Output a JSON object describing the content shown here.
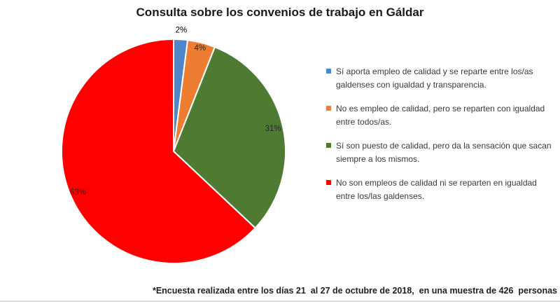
{
  "title": "Consulta sobre los convenios de trabajo en Gáldar",
  "footnote": "*Encuesta realizada entre los días 21  al 27 de octubre de 2018,  en una muestra de 426  personas",
  "chart_data": {
    "type": "pie",
    "title": "Consulta sobre los convenios de trabajo en Gáldar",
    "direction": "clockwise",
    "start_angle_deg": 0,
    "legend_position": "right",
    "grid": false,
    "slices": [
      {
        "label": "Sí aporta empleo de calidad y se reparte entre los/as galdenses con igualdad y transparencia.",
        "value_pct": 2,
        "data_label": "2%",
        "color": "#4E86C8",
        "label_placement": "outside"
      },
      {
        "label": "No es empleo de calidad, pero se reparten con igualdad entre todos/as.",
        "value_pct": 4,
        "data_label": "4%",
        "color": "#ED7D31",
        "label_placement": "inside"
      },
      {
        "label": "Sí son puesto de calidad, pero da la sensación que sacan siempre a los mismos.",
        "value_pct": 31,
        "data_label": "31%",
        "color": "#4E7B31",
        "label_placement": "inside"
      },
      {
        "label": "No son empleos de calidad ni se reparten en igualdad entre los/las galdenses.",
        "value_pct": 63,
        "data_label": "63%",
        "color": "#FF0000",
        "label_placement": "inside"
      }
    ]
  }
}
